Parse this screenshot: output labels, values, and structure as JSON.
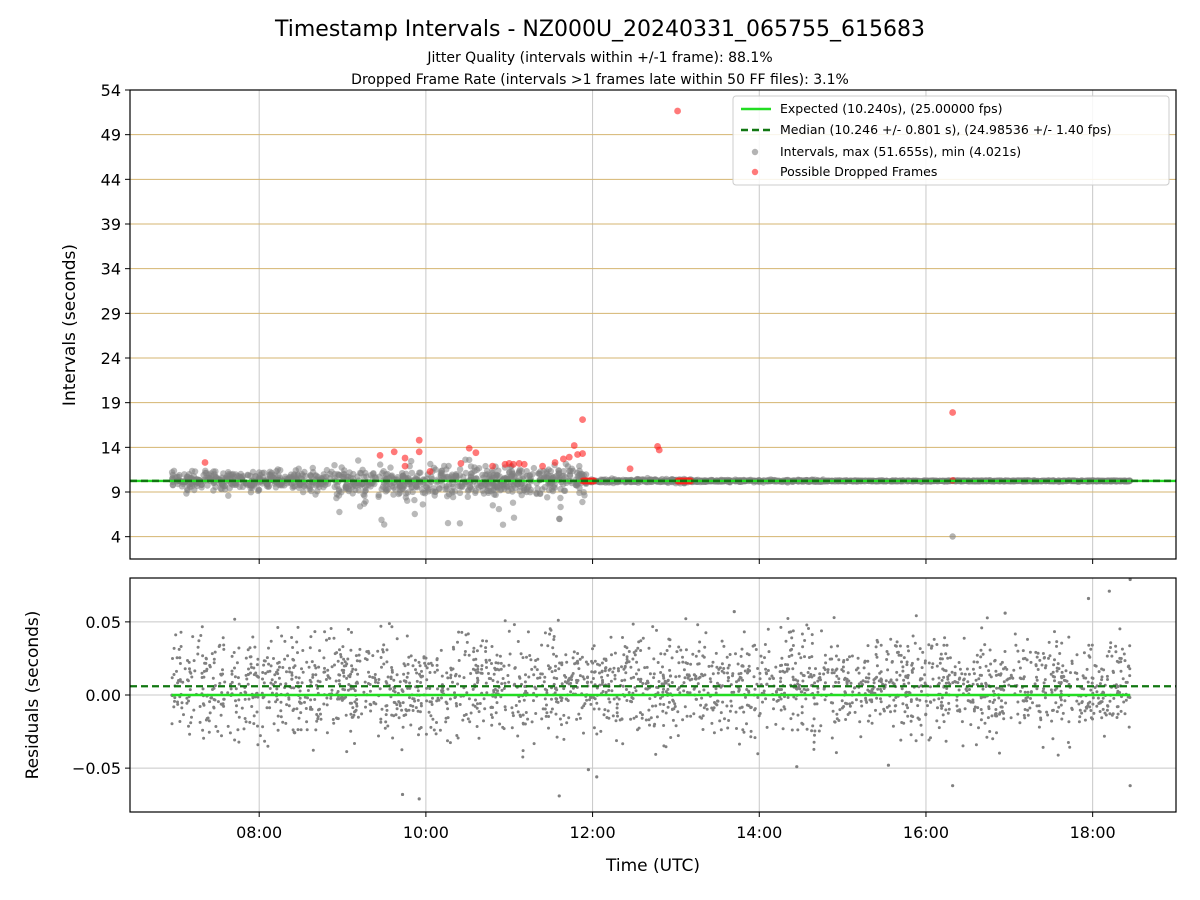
{
  "figure": {
    "title": "Timestamp Intervals - NZ000U_20240331_065755_615683",
    "subtitle_1": "Jitter Quality (intervals within +/-1 frame): 88.1%",
    "subtitle_2": "Dropped Frame Rate (intervals >1 frames late within 50 FF files): 3.1%"
  },
  "colors": {
    "expected": "#22dd22",
    "median": "#117711",
    "intervals": "#808080",
    "dropped": "#ff2020",
    "hgrid_top": "#d4b570",
    "grid": "#c8c8c8"
  },
  "chart_data": [
    {
      "type": "scatter",
      "panel": "top",
      "ylabel": "Intervals (seconds)",
      "xlim": [
        6.45,
        19.0
      ],
      "ylim": [
        1.5,
        54
      ],
      "yticks": [
        4,
        9,
        14,
        19,
        24,
        29,
        34,
        39,
        44,
        49,
        54
      ],
      "xgrid": [
        8,
        10,
        12,
        14,
        16,
        18
      ],
      "hgrid": true,
      "legend_placement": "top-right",
      "lines": [
        {
          "name": "Expected (10.240s), (25.00000 fps)",
          "y": 10.24,
          "style": "solid",
          "x_range": [
            6.45,
            19.0
          ]
        },
        {
          "name": "Median (10.246 +/- 0.801 s), (24.98536 +/- 1.40 fps)",
          "y": 10.246,
          "style": "dashed",
          "x_range": [
            6.45,
            19.0
          ]
        }
      ],
      "series": [
        {
          "name": "Intervals, max (51.655s), min (4.021s)",
          "note_points": [
            [
              16.32,
              4.02
            ]
          ],
          "cluster": {
            "x_range": [
              6.95,
              18.45
            ],
            "count": 2100
          }
        },
        {
          "name": "Possible Dropped Frames",
          "points": [
            [
              7.35,
              12.3
            ],
            [
              9.45,
              13.1
            ],
            [
              9.62,
              13.5
            ],
            [
              9.75,
              12.8
            ],
            [
              9.75,
              11.9
            ],
            [
              9.92,
              14.8
            ],
            [
              9.92,
              13.5
            ],
            [
              10.05,
              11.3
            ],
            [
              10.42,
              12.2
            ],
            [
              10.52,
              13.9
            ],
            [
              10.6,
              13.4
            ],
            [
              10.8,
              11.9
            ],
            [
              10.95,
              12.1
            ],
            [
              11.0,
              12.2
            ],
            [
              11.05,
              12.1
            ],
            [
              11.12,
              12.2
            ],
            [
              11.18,
              12.1
            ],
            [
              11.4,
              11.9
            ],
            [
              11.55,
              12.3
            ],
            [
              11.65,
              12.7
            ],
            [
              11.72,
              12.9
            ],
            [
              11.78,
              14.2
            ],
            [
              11.82,
              13.2
            ],
            [
              11.88,
              13.3
            ],
            [
              11.88,
              17.1
            ],
            [
              12.45,
              11.6
            ],
            [
              12.78,
              14.1
            ],
            [
              12.8,
              13.7
            ],
            [
              13.02,
              51.65
            ],
            [
              16.32,
              17.9
            ],
            [
              16.32,
              10.3
            ]
          ],
          "dense_runs": [
            {
              "x_range": [
                11.88,
                12.02
              ],
              "y": 10.24
            },
            {
              "x_range": [
                13.02,
                13.18
              ],
              "y": 10.24
            }
          ]
        }
      ]
    },
    {
      "type": "scatter",
      "panel": "bottom",
      "xlabel": "Time (UTC)",
      "ylabel": "Residuals (seconds)",
      "xlim": [
        6.45,
        19.0
      ],
      "ylim": [
        -0.08,
        0.08
      ],
      "yticks": [
        -0.05,
        0.0,
        0.05
      ],
      "ytick_labels": [
        "−0.05",
        "0.00",
        "0.05"
      ],
      "xticks": [
        8,
        10,
        12,
        14,
        16,
        18
      ],
      "xtick_labels": [
        "08:00",
        "10:00",
        "12:00",
        "14:00",
        "16:00",
        "18:00"
      ],
      "grid": true,
      "lines": [
        {
          "name": "Expected",
          "y": 0.0,
          "style": "solid",
          "x_range": [
            6.95,
            18.45
          ]
        },
        {
          "name": "Median",
          "y": 0.006,
          "style": "dashed",
          "x_range": [
            6.45,
            19.0
          ]
        }
      ],
      "series": [
        {
          "name": "Residuals",
          "outlier_points": [
            [
              9.72,
              -0.068
            ],
            [
              9.92,
              -0.071
            ],
            [
              11.6,
              -0.069
            ],
            [
              12.05,
              -0.056
            ],
            [
              11.95,
              -0.051
            ],
            [
              16.32,
              -0.062
            ],
            [
              18.45,
              -0.062
            ],
            [
              18.45,
              0.079
            ],
            [
              18.2,
              0.071
            ],
            [
              17.95,
              0.066
            ],
            [
              13.7,
              0.057
            ],
            [
              16.95,
              0.056
            ],
            [
              15.55,
              -0.048
            ],
            [
              14.45,
              -0.049
            ]
          ],
          "cluster": {
            "x_range": [
              6.95,
              18.45
            ],
            "count": 2400,
            "sigma": 0.02
          }
        }
      ]
    }
  ]
}
